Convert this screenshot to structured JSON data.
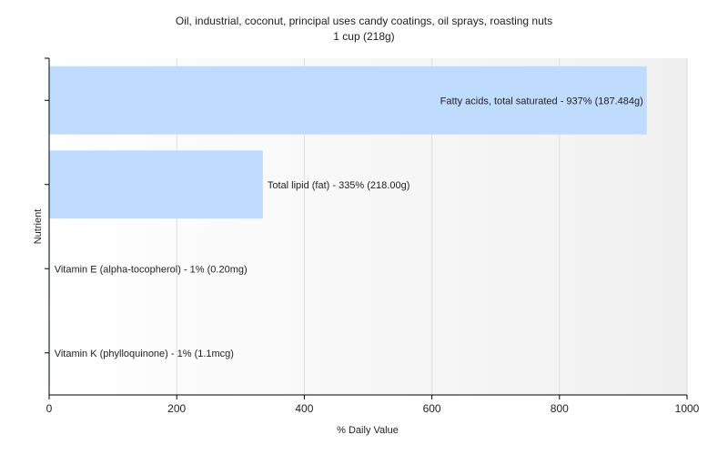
{
  "chart_data": {
    "type": "bar",
    "orientation": "horizontal",
    "title": "Oil, industrial, coconut, principal uses candy coatings, oil sprays, roasting nuts",
    "subtitle": "1 cup (218g)",
    "xlabel": "% Daily Value",
    "ylabel": "Nutrient",
    "xlim": [
      0,
      1000
    ],
    "xticks": [
      0,
      200,
      400,
      600,
      800,
      1000
    ],
    "grid": true,
    "bar_color": "#bfdcff",
    "bars": [
      {
        "label": "Fatty acids, total saturated - 937% (187.484g)",
        "value": 937
      },
      {
        "label": "Total lipid (fat) - 335% (218.00g)",
        "value": 335
      },
      {
        "label": "Vitamin E (alpha-tocopherol) - 1% (0.20mg)",
        "value": 1
      },
      {
        "label": "Vitamin K (phylloquinone) - 1% (1.1mcg)",
        "value": 1
      }
    ]
  }
}
